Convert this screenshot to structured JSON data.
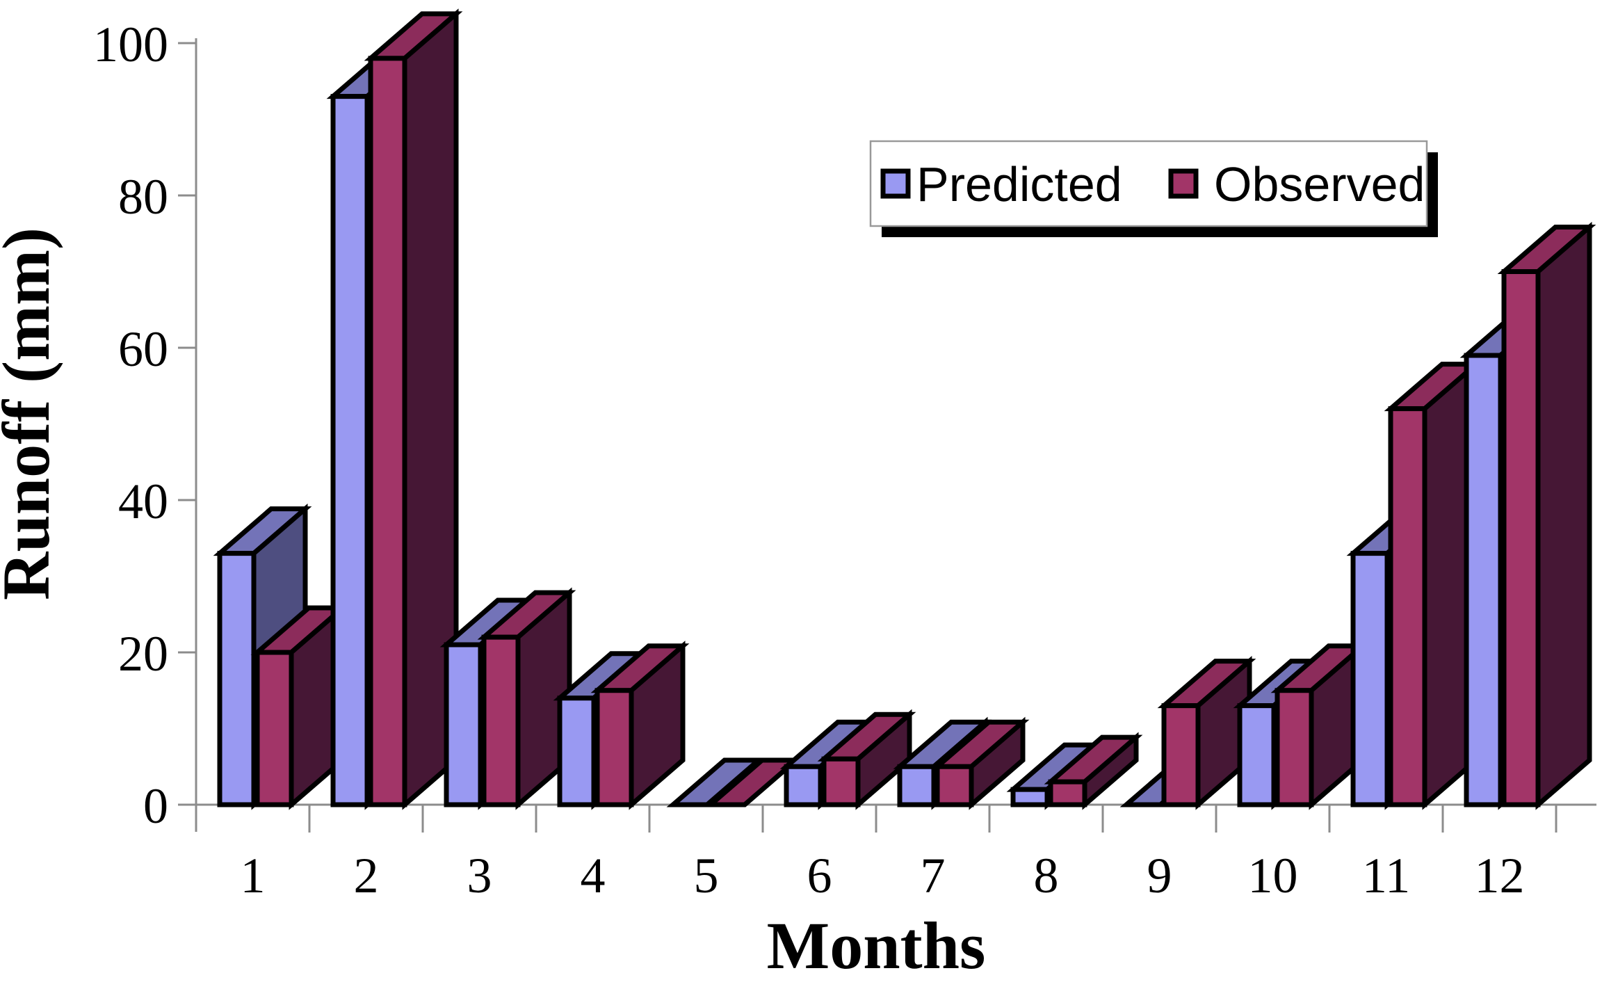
{
  "figure": {
    "background": "#FFFFFF"
  },
  "chart_data": {
    "type": "bar",
    "style": "3d-clustered",
    "title": "",
    "xlabel": "Months",
    "ylabel": "Runoff (mm)",
    "categories": [
      "1",
      "2",
      "3",
      "4",
      "5",
      "6",
      "7",
      "8",
      "9",
      "10",
      "11",
      "12"
    ],
    "series": [
      {
        "name": "Predicted",
        "values": [
          33,
          93,
          21,
          14,
          0,
          5,
          5,
          2,
          0,
          13,
          33,
          59
        ],
        "colors": {
          "front": "#9999F2",
          "top": "#7373B8",
          "side": "#4E4E80"
        }
      },
      {
        "name": "Observed",
        "values": [
          20,
          98,
          22,
          15,
          0,
          6,
          5,
          3,
          13,
          15,
          52,
          70
        ],
        "colors": {
          "front": "#A23568",
          "top": "#8C2C5B",
          "side": "#461735"
        }
      }
    ],
    "ylim": [
      0,
      100
    ],
    "yticks": [
      0,
      20,
      40,
      60,
      80,
      100
    ],
    "grid": false,
    "legend_position": "top-right",
    "axis_color": "#8C8C8C",
    "outline_color": "#000000",
    "legend_shadow_color": "#000000"
  }
}
